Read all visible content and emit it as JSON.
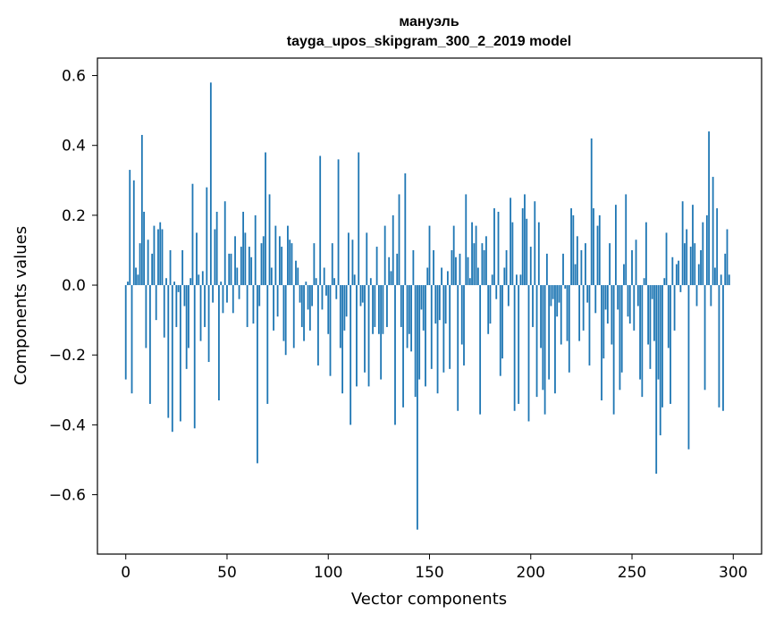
{
  "chart_data": {
    "type": "bar",
    "title": "мануэль",
    "subtitle": "tayga_upos_skipgram_300_2_2019 model",
    "xlabel": "Vector components",
    "ylabel": "Components values",
    "xlim": [
      -14,
      314
    ],
    "ylim": [
      -0.77,
      0.65
    ],
    "xticks": [
      0,
      50,
      100,
      150,
      200,
      250,
      300
    ],
    "xtick_labels": [
      "0",
      "50",
      "100",
      "150",
      "200",
      "250",
      "300"
    ],
    "yticks": [
      -0.6,
      -0.4,
      -0.2,
      0.0,
      0.2,
      0.4,
      0.6
    ],
    "ytick_labels": [
      "−0.6",
      "−0.4",
      "−0.2",
      "0.0",
      "0.2",
      "0.4",
      "0.6"
    ],
    "bar_color": "#1f77b4",
    "values": [
      -0.27,
      0.01,
      0.33,
      -0.31,
      0.3,
      0.05,
      0.03,
      0.12,
      0.43,
      0.21,
      -0.18,
      0.13,
      -0.34,
      0.09,
      0.17,
      -0.1,
      0.16,
      0.18,
      0.16,
      -0.15,
      0.02,
      -0.38,
      0.1,
      -0.42,
      0.01,
      -0.12,
      -0.02,
      -0.39,
      0.1,
      -0.06,
      -0.24,
      -0.18,
      0.02,
      0.29,
      -0.41,
      0.15,
      0.03,
      -0.16,
      0.04,
      -0.12,
      0.28,
      -0.22,
      0.58,
      -0.05,
      0.16,
      0.21,
      -0.33,
      0.01,
      -0.08,
      0.24,
      -0.05,
      0.09,
      0.09,
      -0.08,
      0.14,
      0.05,
      -0.04,
      0.11,
      0.21,
      0.15,
      -0.12,
      0.11,
      0.08,
      -0.11,
      0.2,
      -0.51,
      -0.06,
      0.12,
      0.14,
      0.38,
      -0.34,
      0.26,
      0.05,
      -0.13,
      0.17,
      -0.09,
      0.14,
      0.11,
      -0.16,
      -0.2,
      0.17,
      0.13,
      0.12,
      -0.18,
      0.07,
      0.05,
      -0.05,
      -0.12,
      -0.16,
      0.01,
      -0.07,
      -0.13,
      -0.06,
      0.12,
      0.02,
      -0.23,
      0.37,
      -0.07,
      0.05,
      -0.03,
      -0.14,
      -0.26,
      0.12,
      0.02,
      -0.04,
      0.36,
      -0.18,
      -0.31,
      -0.13,
      -0.09,
      0.15,
      -0.4,
      0.13,
      0.03,
      -0.29,
      0.38,
      -0.06,
      -0.05,
      -0.25,
      0.15,
      -0.29,
      0.02,
      -0.14,
      -0.12,
      0.11,
      -0.14,
      -0.27,
      -0.14,
      0.17,
      -0.12,
      0.08,
      0.04,
      0.2,
      -0.4,
      0.09,
      0.26,
      -0.12,
      -0.35,
      0.32,
      -0.18,
      -0.14,
      -0.19,
      0.1,
      -0.32,
      -0.7,
      -0.27,
      -0.07,
      -0.13,
      -0.29,
      0.05,
      0.17,
      -0.24,
      0.1,
      -0.11,
      -0.31,
      -0.1,
      0.05,
      -0.25,
      -0.11,
      0.04,
      -0.24,
      0.1,
      0.17,
      0.08,
      -0.36,
      0.09,
      -0.17,
      -0.23,
      0.26,
      0.08,
      0.02,
      0.18,
      0.12,
      0.17,
      0.05,
      -0.37,
      0.12,
      0.1,
      0.14,
      -0.14,
      -0.11,
      0.03,
      0.22,
      -0.04,
      0.21,
      -0.26,
      -0.21,
      0.05,
      0.1,
      -0.06,
      0.25,
      0.18,
      -0.36,
      0.03,
      -0.34,
      0.03,
      0.22,
      0.26,
      0.19,
      -0.39,
      0.11,
      -0.12,
      0.24,
      -0.32,
      0.18,
      -0.18,
      -0.3,
      -0.37,
      0.09,
      -0.27,
      -0.06,
      -0.04,
      -0.31,
      -0.09,
      -0.05,
      -0.17,
      0.09,
      -0.01,
      -0.16,
      -0.25,
      0.22,
      0.2,
      0.06,
      0.14,
      -0.16,
      0.1,
      -0.13,
      0.12,
      -0.05,
      -0.23,
      0.42,
      0.22,
      -0.08,
      0.17,
      0.2,
      -0.33,
      -0.21,
      -0.07,
      -0.11,
      0.12,
      -0.17,
      -0.37,
      0.23,
      -0.07,
      -0.3,
      -0.25,
      0.06,
      0.26,
      -0.09,
      -0.11,
      0.1,
      -0.13,
      0.13,
      -0.06,
      -0.27,
      -0.32,
      0.02,
      0.18,
      -0.17,
      -0.24,
      -0.04,
      -0.16,
      -0.54,
      -0.27,
      -0.43,
      -0.35,
      0.02,
      0.15,
      -0.18,
      -0.34,
      0.08,
      -0.13,
      0.06,
      0.07,
      -0.02,
      0.24,
      0.12,
      0.16,
      -0.47,
      0.11,
      0.23,
      0.12,
      -0.06,
      0.06,
      0.1,
      0.18,
      -0.3,
      0.2,
      0.44,
      -0.06,
      0.31,
      0.05,
      0.22,
      -0.35,
      0.03,
      -0.36,
      0.09,
      0.16,
      0.03
    ]
  }
}
